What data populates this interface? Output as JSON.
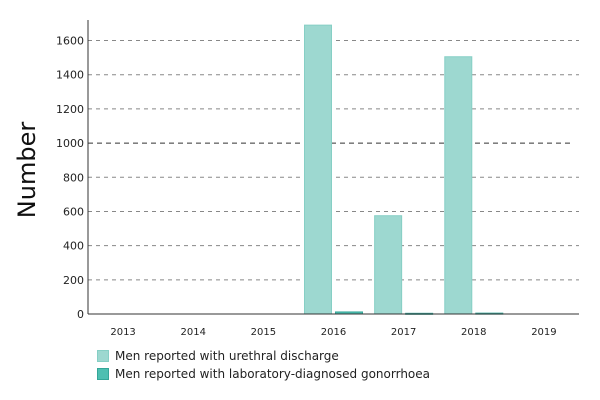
{
  "colors": {
    "series_1": "#9dd8d0",
    "series_1_border": "#86cfc5",
    "series_2": "#4dbfb1",
    "series_2_border": "#34a698",
    "grid": "#888888",
    "threshold": "#333333",
    "axis": "#333333"
  },
  "chart_data": {
    "type": "bar",
    "title": "",
    "xlabel": "",
    "ylabel": "Number",
    "categories": [
      "2013",
      "2014",
      "2015",
      "2016",
      "2017",
      "2018",
      "2019"
    ],
    "series": [
      {
        "name": "Men reported with urethral discharge",
        "values": [
          0,
          0,
          0,
          1690,
          575,
          1505,
          0
        ]
      },
      {
        "name": "Men reported with laboratory-diagnosed gonorrhoea",
        "values": [
          0,
          0,
          0,
          12,
          4,
          5,
          0
        ]
      }
    ],
    "ylim": [
      0,
      1720
    ],
    "yticks": [
      0,
      200,
      400,
      600,
      800,
      1000,
      1200,
      1400,
      1600
    ],
    "reference_line": 1000,
    "grid": true,
    "legend_position": "bottom-left"
  }
}
